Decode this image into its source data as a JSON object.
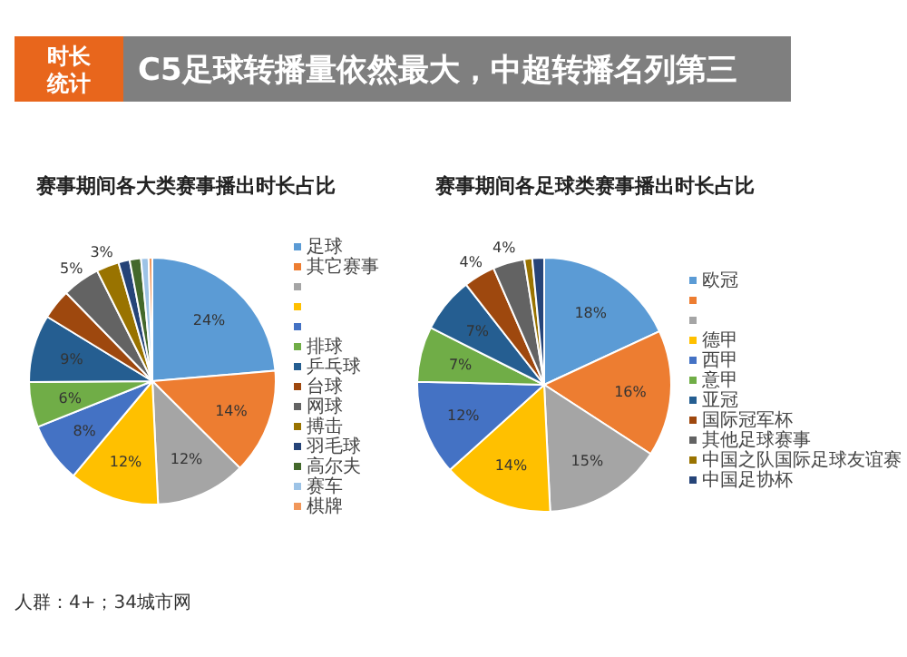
{
  "chart_data": [
    {
      "type": "other",
      "title": "C5足球转播量依然最大，中超转播名列第三",
      "subtitle": "时长统计"
    },
    {
      "type": "pie",
      "title": "赛事期间各大类赛事播出时长占比",
      "categories": [
        "足球",
        "其它赛事",
        null,
        null,
        null,
        "排球",
        "乒乓球",
        "台球",
        "网球",
        "搏击",
        "羽毛球",
        "高尔夫",
        "赛车",
        "棋牌"
      ],
      "values": [
        24,
        14,
        12,
        12,
        8,
        6,
        9,
        4,
        5,
        3,
        1.5,
        1.5,
        1,
        0.5
      ],
      "colors": [
        "#5b9bd5",
        "#ed7d31",
        "#a5a5a5",
        "#ffc000",
        "#4472c4",
        "#70ad47",
        "#255e91",
        "#9e480e",
        "#636363",
        "#997300",
        "#264478",
        "#43682b",
        "#9dc3e6",
        "#f1975a"
      ],
      "value_labels": [
        "24%",
        "14%",
        "12%",
        "12%",
        "8%",
        "6%",
        "9%",
        null,
        "5%",
        "3%",
        null,
        null,
        null,
        null
      ],
      "legend": "right",
      "annotations": [
        "人群：4+；34城市网"
      ]
    },
    {
      "type": "pie",
      "title": "赛事期间各足球类赛事播出时长占比",
      "categories": [
        "欧冠",
        null,
        null,
        "德甲",
        "西甲",
        "意甲",
        "亚冠",
        "国际冠军杯",
        "其他足球赛事",
        "中国之队国际足球友谊赛",
        "中国足协杯"
      ],
      "values": [
        18,
        16,
        15,
        14,
        12,
        7,
        7,
        4,
        4,
        1,
        1.5
      ],
      "colors": [
        "#5b9bd5",
        "#ed7d31",
        "#a5a5a5",
        "#ffc000",
        "#4472c4",
        "#70ad47",
        "#255e91",
        "#9e480e",
        "#636363",
        "#997300",
        "#264478"
      ],
      "value_labels": [
        "18%",
        "16%",
        "15%",
        "14%",
        "12%",
        "7%",
        "7%",
        "4%",
        "4%",
        null,
        null
      ],
      "legend": "right"
    }
  ]
}
